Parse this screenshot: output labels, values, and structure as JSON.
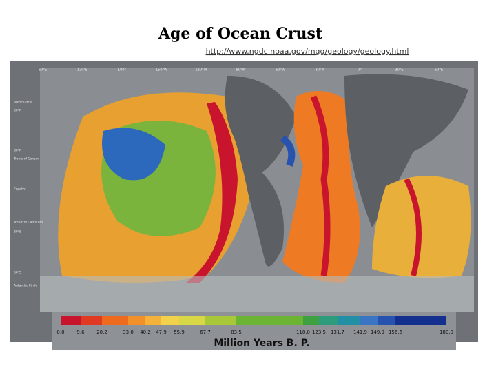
{
  "title": "Age of Ocean Crust",
  "link": "http://www.ngdc.noaa.gov/mgg/geology/geology.html",
  "map": {
    "top_labels": [
      "60°E",
      "120°E",
      "180°",
      "150°W",
      "120°W",
      "90°W",
      "60°W",
      "30°W",
      "0°",
      "30°E",
      "60°E"
    ],
    "left_labels": [
      "Arctic Circle",
      "60°N",
      "30°N",
      "Tropic of Cancer",
      "Equator",
      "Tropic of Capricorn",
      "30°S",
      "60°S",
      "Antarctic Circle"
    ]
  },
  "legend": {
    "title": "Million Years B. P.",
    "labels": [
      "0.0",
      "9.6",
      "20.2",
      "33.0",
      "40.2",
      "47.9",
      "55.9",
      "67.7",
      "83.5",
      "118.0",
      "123.5",
      "131.7",
      "141.9",
      "149.9",
      "156.6",
      "180.0"
    ],
    "colors": [
      "#c8142c",
      "#e03a22",
      "#ee6a1e",
      "#f2902a",
      "#f4b23a",
      "#f2d24a",
      "#d8d846",
      "#a8c83a",
      "#6cb434",
      "#3ea040",
      "#2c9c7c",
      "#2290a4",
      "#3a74c4",
      "#2852b0",
      "#14308e"
    ]
  }
}
